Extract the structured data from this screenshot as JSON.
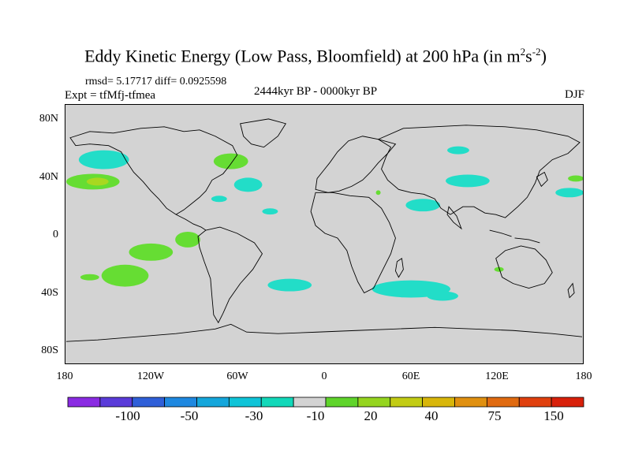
{
  "title": "Eddy Kinetic Energy (Low Pass, Bloomfield) at 200 hPa (in m",
  "title_sup1": "2",
  "title_mid": "s",
  "title_sup2": "-2",
  "title_end": ")",
  "stats": "rmsd= 5.17717 diff= 0.0925598",
  "expt": "Expt = tfMfj-tfmea",
  "center_label": "2444kyr BP - 0000kyr BP",
  "season": "DJF",
  "lat_labels": [
    "80N",
    "40N",
    "0",
    "40S",
    "80S"
  ],
  "lon_labels": [
    "180",
    "120W",
    "60W",
    "0",
    "60E",
    "120E",
    "180"
  ],
  "colorbar": {
    "labels": [
      "-100",
      "-50",
      "-30",
      "-10",
      "20",
      "40",
      "75",
      "150"
    ],
    "colors": [
      "#8a2be2",
      "#5a3bd9",
      "#2f5fd8",
      "#1e88e0",
      "#14a6db",
      "#0fc4d8",
      "#12d8b9",
      "#d3d3d3",
      "#5fd42b",
      "#95d51f",
      "#c2cc14",
      "#d8b60a",
      "#e09010",
      "#e06a10",
      "#e0400e",
      "#d8200a"
    ]
  },
  "map_colors": {
    "background": "#d3d3d3",
    "positive_low": "#66dd33",
    "positive_mid": "#a8d820",
    "negative_low": "#22ddc8"
  }
}
